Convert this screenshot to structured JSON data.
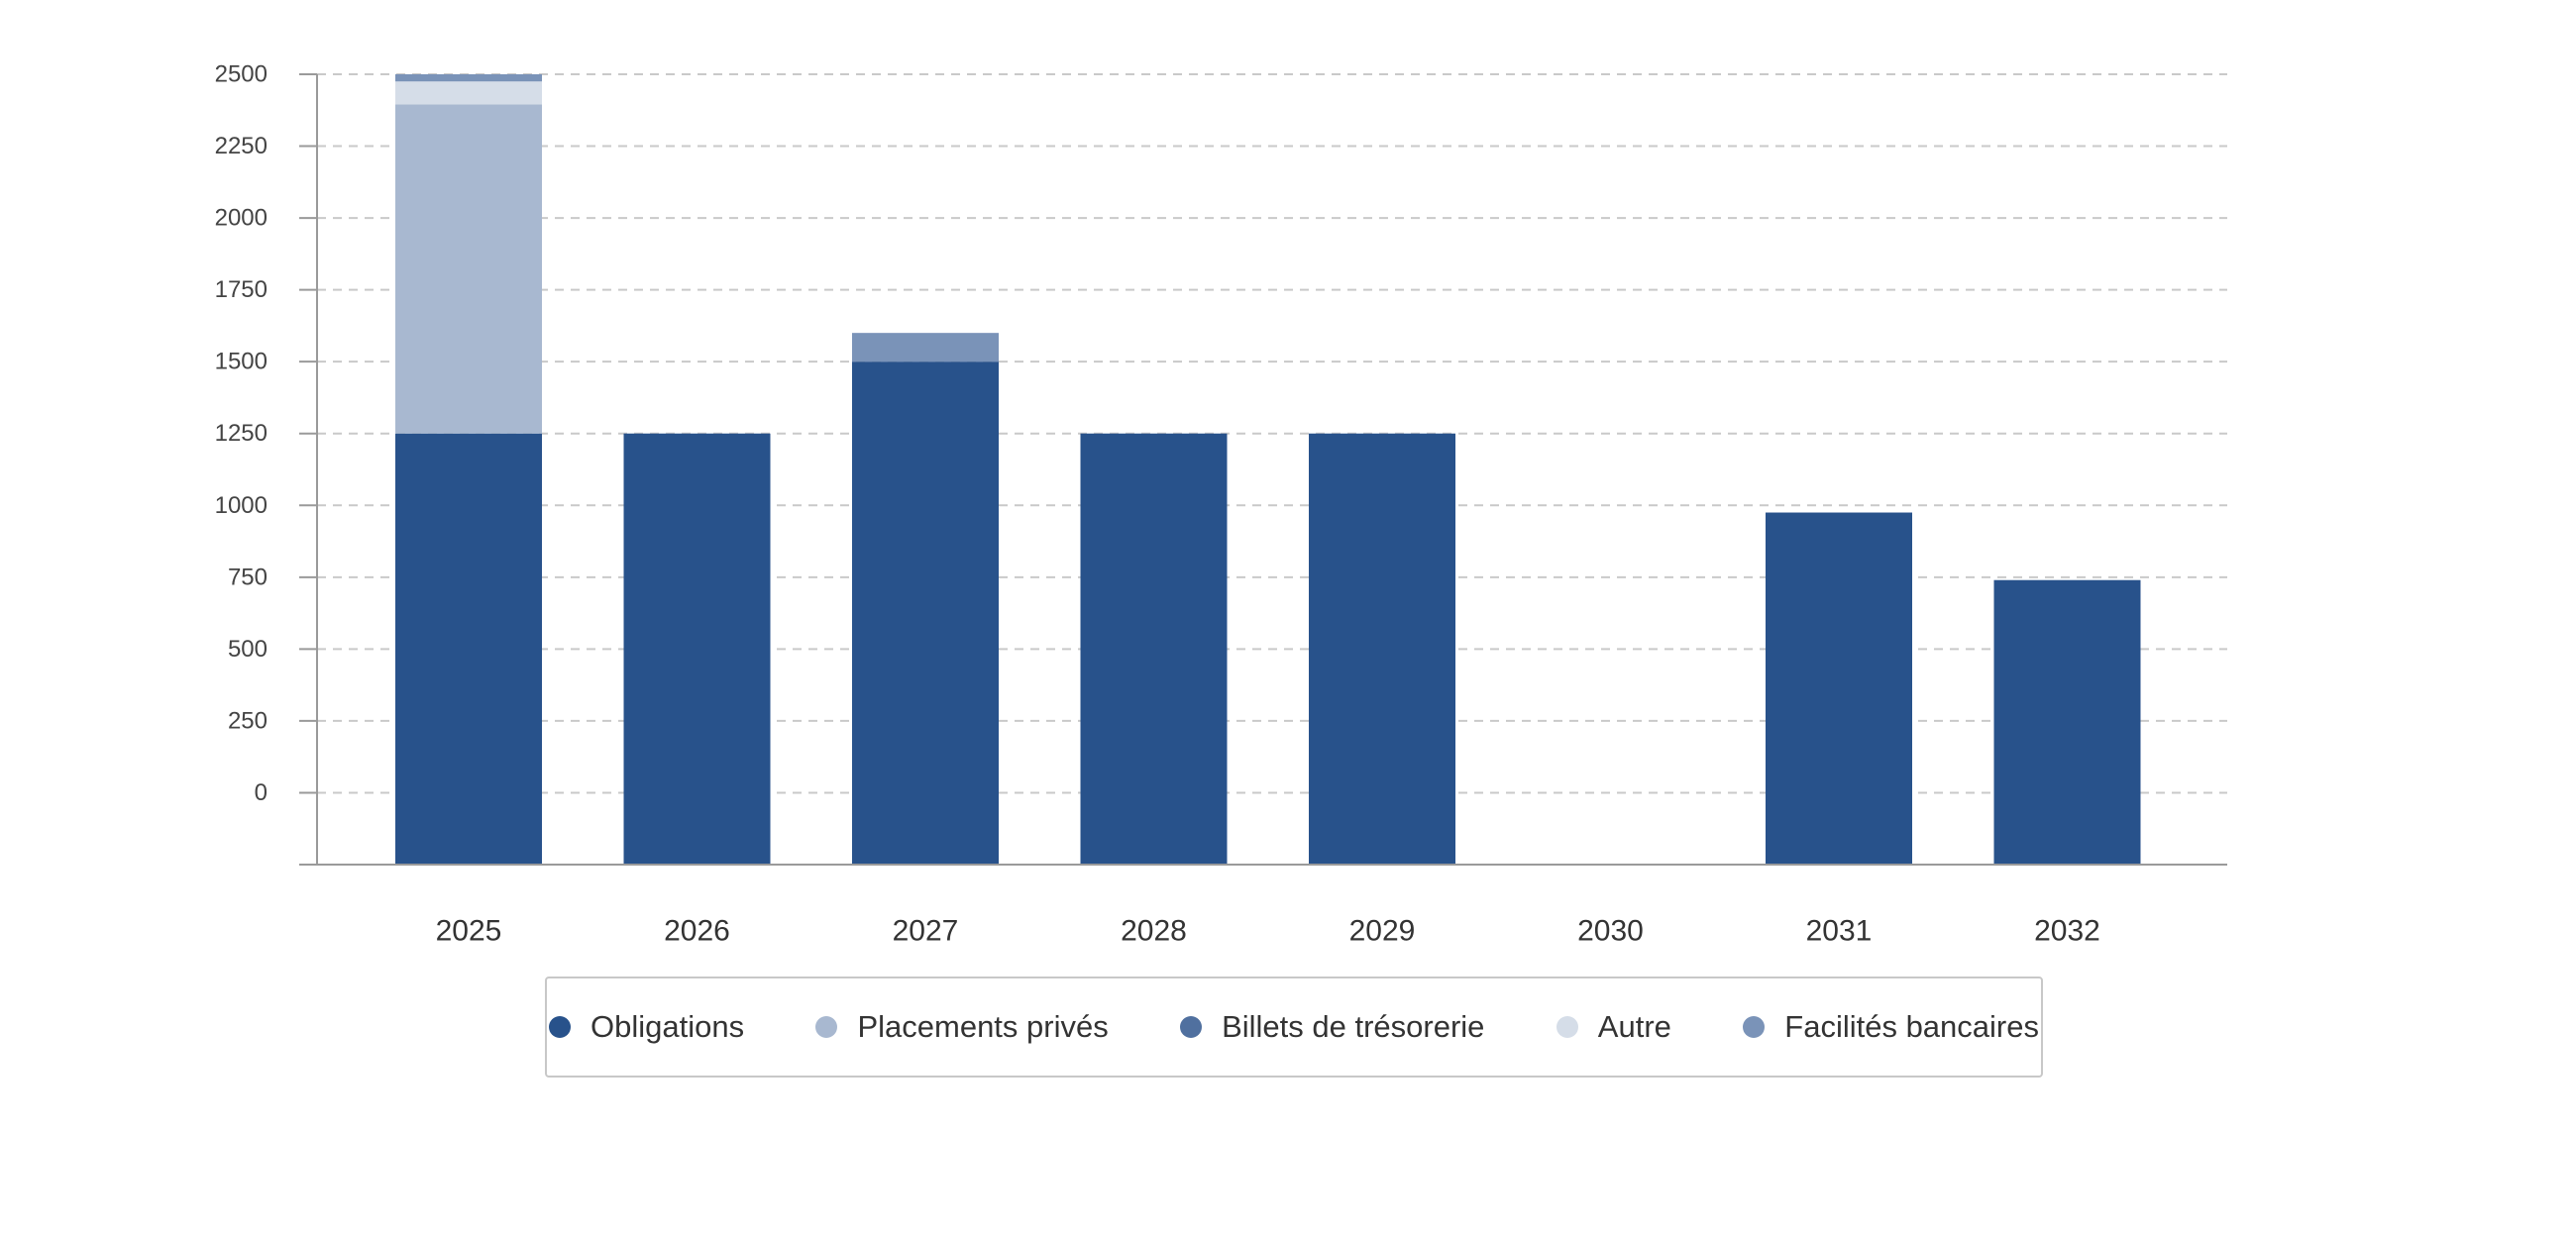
{
  "chart_data": {
    "type": "bar",
    "stacked": true,
    "categories": [
      "2025",
      "2026",
      "2027",
      "2028",
      "2029",
      "2030",
      "2031",
      "2032"
    ],
    "series": [
      {
        "name": "Obligations",
        "color": "#28528b",
        "values": [
          1250,
          1250,
          1500,
          1250,
          1250,
          0,
          975,
          740
        ]
      },
      {
        "name": "Placements privés",
        "color": "#a8b8d0",
        "values": [
          1145,
          0,
          0,
          0,
          0,
          0,
          0,
          0
        ]
      },
      {
        "name": "Billets de trésorerie",
        "color": "#50709f",
        "values": [
          0,
          0,
          0,
          0,
          0,
          0,
          0,
          0
        ]
      },
      {
        "name": "Autre",
        "color": "#d5dde8",
        "values": [
          80,
          0,
          0,
          0,
          0,
          0,
          0,
          0
        ]
      },
      {
        "name": "Facilités bancaires",
        "color": "#7a93b8",
        "values": [
          25,
          0,
          100,
          0,
          0,
          0,
          0,
          0
        ]
      }
    ],
    "y_ticks": [
      "2500",
      "2250",
      "2000",
      "1750",
      "1500",
      "1250",
      "1000",
      "750",
      "500",
      "250",
      "0"
    ],
    "ylim": [
      -250,
      2500
    ],
    "grid": true,
    "legend_position": "bottom"
  }
}
